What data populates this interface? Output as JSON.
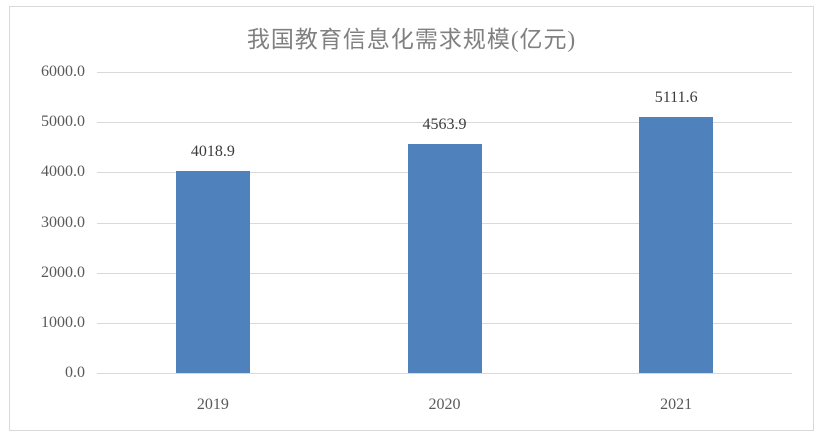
{
  "chart_data": {
    "type": "bar",
    "title": "我国教育信息化需求规模(亿元)",
    "categories": [
      "2019",
      "2020",
      "2021"
    ],
    "values": [
      4018.9,
      4563.9,
      5111.6
    ],
    "value_labels": [
      "4018.9",
      "4563.9",
      "5111.6"
    ],
    "xlabel": "",
    "ylabel": "",
    "ylim": [
      0,
      6000
    ],
    "yticks": [
      0,
      1000,
      2000,
      3000,
      4000,
      5000,
      6000
    ],
    "ytick_labels": [
      "0.0",
      "1000.0",
      "2000.0",
      "3000.0",
      "4000.0",
      "5000.0",
      "6000.0"
    ],
    "grid": true,
    "legend_position": "none",
    "colors": {
      "bar": "#4F81BD",
      "gridline": "#D9D9D9",
      "axis_line": "#D9D9D9",
      "tick_label": "#595959",
      "data_label": "#3B3B3B",
      "title": "#808080",
      "frame_border": "#D9D9D9",
      "background": "#FFFFFF"
    }
  }
}
